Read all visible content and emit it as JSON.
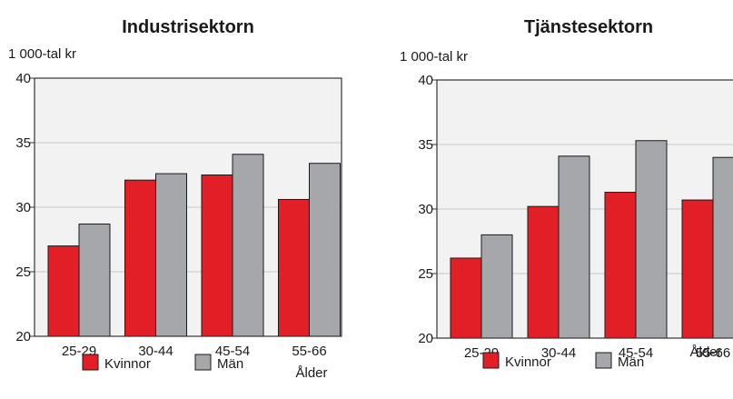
{
  "colors": {
    "kvinnor": "#e21f26",
    "man": "#a6a7aa",
    "plot_bg": "#f2f2f2",
    "grid": "#c8c8c8",
    "border": "#333333"
  },
  "chart_data": [
    {
      "type": "bar",
      "title": "Industrisektorn",
      "ylabel": "1 000-tal kr",
      "xlabel": "Ålder",
      "categories": [
        "25-29",
        "30-44",
        "45-54",
        "55-66"
      ],
      "ylim": [
        20,
        40
      ],
      "yticks": [
        "20",
        "25",
        "30",
        "35",
        "40"
      ],
      "grid": true,
      "legend": "bottom",
      "series": [
        {
          "name": "Kvinnor",
          "values": [
            27.0,
            32.1,
            32.5,
            30.6
          ]
        },
        {
          "name": "Män",
          "values": [
            28.7,
            32.6,
            34.1,
            33.4
          ]
        }
      ]
    },
    {
      "type": "bar",
      "title": "Tjänstesektorn",
      "ylabel": "1 000-tal kr",
      "xlabel": "Ålder",
      "categories": [
        "25-29",
        "30-44",
        "45-54",
        "55-66"
      ],
      "ylim": [
        20,
        40
      ],
      "yticks": [
        "20",
        "25",
        "30",
        "35",
        "40"
      ],
      "grid": true,
      "legend": "bottom",
      "series": [
        {
          "name": "Kvinnor",
          "values": [
            26.2,
            30.2,
            31.3,
            30.7
          ]
        },
        {
          "name": "Män",
          "values": [
            28.0,
            34.1,
            35.3,
            34.0
          ]
        }
      ]
    }
  ]
}
